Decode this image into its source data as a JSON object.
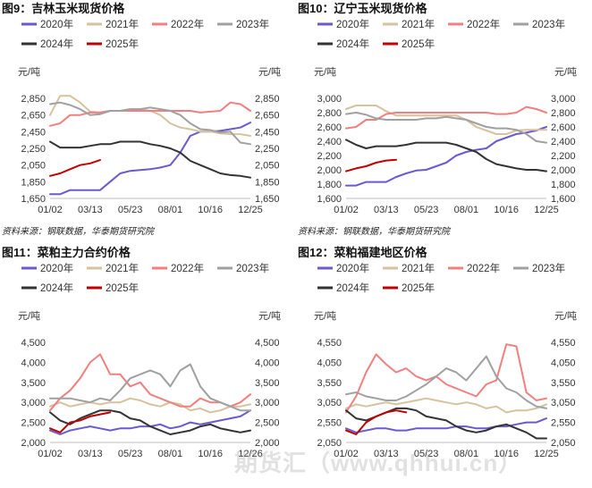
{
  "watermark": "期货汇（www.qhhui.cn）",
  "chart_data": [
    {
      "type": "line",
      "title": "图9：吉林玉米现货价格",
      "unit_left": "元/吨",
      "unit_right": "元/吨",
      "x_ticks": [
        "01/02",
        "03/13",
        "05/23",
        "08/01",
        "10/16",
        "12/25"
      ],
      "ylim": [
        1650,
        2850
      ],
      "y_ticks": [
        1650,
        1850,
        2050,
        2250,
        2450,
        2650,
        2850
      ],
      "y_tick_labels": [
        "1,650",
        "1,850",
        "2,050",
        "2,250",
        "2,450",
        "2,650",
        "2,850"
      ],
      "source": "资料来源：钢联数据，华泰期货研究院",
      "series": [
        {
          "name": "2020年",
          "color": "#6a5acd",
          "values": [
            1700,
            1700,
            1750,
            1750,
            1750,
            1750,
            1850,
            1950,
            1980,
            1990,
            2000,
            2020,
            2050,
            2200,
            2400,
            2450,
            2450,
            2460,
            2480,
            2500,
            2560
          ]
        },
        {
          "name": "2021年",
          "color": "#d6c29e",
          "values": [
            2650,
            2880,
            2880,
            2800,
            2690,
            2680,
            2700,
            2700,
            2720,
            2720,
            2700,
            2650,
            2550,
            2500,
            2480,
            2450,
            2450,
            2430,
            2420,
            2420,
            2400
          ]
        },
        {
          "name": "2022年",
          "color": "#f08080",
          "values": [
            2520,
            2550,
            2650,
            2650,
            2680,
            2680,
            2700,
            2700,
            2700,
            2700,
            2700,
            2700,
            2700,
            2700,
            2700,
            2680,
            2690,
            2700,
            2800,
            2780,
            2700
          ]
        },
        {
          "name": "2023年",
          "color": "#a0a0a0",
          "values": [
            2780,
            2800,
            2770,
            2720,
            2650,
            2660,
            2700,
            2700,
            2720,
            2720,
            2740,
            2720,
            2700,
            2650,
            2550,
            2480,
            2470,
            2440,
            2450,
            2320,
            2300
          ]
        },
        {
          "name": "2024年",
          "color": "#333333",
          "values": [
            2330,
            2260,
            2260,
            2260,
            2280,
            2300,
            2300,
            2330,
            2330,
            2330,
            2300,
            2280,
            2250,
            2200,
            2100,
            2050,
            2000,
            1950,
            1930,
            1920,
            1900
          ]
        },
        {
          "name": "2025年",
          "color": "#c00000",
          "values": [
            1920,
            1950,
            2000,
            2050,
            2070,
            2110
          ]
        }
      ]
    },
    {
      "type": "line",
      "title": "图10：辽宁玉米现货价格",
      "unit_left": "元/吨",
      "unit_right": "元/吨",
      "x_ticks": [
        "01/02",
        "03/13",
        "05/23",
        "08/01",
        "10/16",
        "12/25"
      ],
      "ylim": [
        1600,
        3000
      ],
      "y_ticks": [
        1600,
        1800,
        2000,
        2200,
        2400,
        2600,
        2800,
        3000
      ],
      "y_tick_labels": [
        "1,600",
        "1,800",
        "2,000",
        "2,200",
        "2,400",
        "2,600",
        "2,800",
        "3,000"
      ],
      "source": "资料来源：钢联数据，华泰期货研究院",
      "series": [
        {
          "name": "2020年",
          "color": "#6a5acd",
          "values": [
            1780,
            1780,
            1830,
            1830,
            1830,
            1900,
            1950,
            1990,
            2000,
            2050,
            2100,
            2200,
            2250,
            2280,
            2300,
            2400,
            2450,
            2500,
            2520,
            2550,
            2600
          ]
        },
        {
          "name": "2021年",
          "color": "#d6c29e",
          "values": [
            2850,
            2900,
            2900,
            2900,
            2820,
            2760,
            2760,
            2760,
            2760,
            2760,
            2760,
            2760,
            2700,
            2600,
            2550,
            2500,
            2500,
            2550,
            2560,
            2560,
            2560
          ]
        },
        {
          "name": "2022年",
          "color": "#f08080",
          "values": [
            2580,
            2600,
            2700,
            2700,
            2780,
            2800,
            2800,
            2800,
            2800,
            2800,
            2800,
            2800,
            2800,
            2800,
            2800,
            2780,
            2780,
            2800,
            2880,
            2850,
            2800
          ]
        },
        {
          "name": "2023年",
          "color": "#a0a0a0",
          "values": [
            2780,
            2800,
            2770,
            2720,
            2700,
            2700,
            2700,
            2700,
            2720,
            2720,
            2740,
            2720,
            2700,
            2650,
            2600,
            2580,
            2580,
            2560,
            2500,
            2400,
            2380
          ]
        },
        {
          "name": "2024年",
          "color": "#333333",
          "values": [
            2420,
            2350,
            2300,
            2330,
            2330,
            2330,
            2350,
            2380,
            2380,
            2380,
            2380,
            2350,
            2300,
            2250,
            2150,
            2080,
            2050,
            2020,
            2000,
            2000,
            1980
          ]
        },
        {
          "name": "2025年",
          "color": "#c00000",
          "values": [
            1980,
            2020,
            2050,
            2100,
            2130,
            2140
          ]
        }
      ]
    },
    {
      "type": "line",
      "title": "图11：菜粕主力合约价格",
      "unit_left": "元/吨",
      "unit_right": "元/吨",
      "x_ticks": [
        "01/02",
        "03/13",
        "05/23",
        "08/01",
        "10/16",
        "12/26"
      ],
      "ylim": [
        2000,
        4500
      ],
      "y_ticks": [
        2000,
        2500,
        3000,
        3500,
        4000,
        4500
      ],
      "y_tick_labels": [
        "2,000",
        "2,500",
        "3,000",
        "3,500",
        "4,000",
        "4,500"
      ],
      "source": "",
      "series": [
        {
          "name": "2020年",
          "color": "#6a5acd",
          "values": [
            2300,
            2200,
            2300,
            2350,
            2400,
            2350,
            2300,
            2350,
            2350,
            2400,
            2400,
            2450,
            2350,
            2400,
            2500,
            2450,
            2500,
            2550,
            2600,
            2650,
            2800
          ]
        },
        {
          "name": "2021年",
          "color": "#d6c29e",
          "values": [
            2900,
            3000,
            2900,
            2950,
            3000,
            2950,
            3000,
            3000,
            3100,
            3050,
            2950,
            2900,
            3000,
            2950,
            2800,
            2850,
            2750,
            2800,
            2900,
            2900,
            2950
          ]
        },
        {
          "name": "2022年",
          "color": "#f08080",
          "values": [
            2800,
            3100,
            3300,
            3600,
            4000,
            4200,
            3700,
            3700,
            3400,
            3500,
            3200,
            3100,
            3000,
            2900,
            2900,
            3100,
            3000,
            3000,
            2900,
            3000,
            3200
          ]
        },
        {
          "name": "2023年",
          "color": "#a0a0a0",
          "values": [
            3100,
            3100,
            3100,
            3050,
            3000,
            3100,
            3050,
            3300,
            3600,
            3700,
            3800,
            3700,
            3400,
            3800,
            3950,
            3400,
            3100,
            3000,
            2900,
            2800,
            2800
          ]
        },
        {
          "name": "2024年",
          "color": "#333333",
          "values": [
            2750,
            2550,
            2450,
            2600,
            2700,
            2800,
            2800,
            2750,
            2600,
            2550,
            2400,
            2300,
            2200,
            2250,
            2300,
            2400,
            2450,
            2350,
            2300,
            2250,
            2300
          ]
        },
        {
          "name": "2025年",
          "color": "#c00000",
          "values": [
            2350,
            2250,
            2500,
            2550,
            2650,
            2700,
            2750
          ]
        }
      ]
    },
    {
      "type": "line",
      "title": "图12：菜粕福建地区价格",
      "unit_left": "元/吨",
      "unit_right": "元/吨",
      "x_ticks": [
        "01/02",
        "03/13",
        "05/23",
        "08/01",
        "10/16",
        "12/25"
      ],
      "ylim": [
        2050,
        4550
      ],
      "y_ticks": [
        2050,
        2550,
        3050,
        3550,
        4050,
        4550
      ],
      "y_tick_labels": [
        "2,050",
        "2,550",
        "3,050",
        "3,550",
        "4,050",
        "4,550"
      ],
      "source": "",
      "series": [
        {
          "name": "2020年",
          "color": "#6a5acd",
          "values": [
            2400,
            2300,
            2350,
            2400,
            2400,
            2350,
            2350,
            2400,
            2400,
            2400,
            2400,
            2450,
            2450,
            2400,
            2400,
            2450,
            2450,
            2500,
            2550,
            2550,
            2650
          ]
        },
        {
          "name": "2021年",
          "color": "#d6c29e",
          "values": [
            2900,
            3000,
            2950,
            3000,
            3050,
            3000,
            3050,
            3100,
            3150,
            3100,
            3050,
            3000,
            3050,
            3000,
            2900,
            2950,
            2800,
            2850,
            2850,
            2900,
            3000
          ]
        },
        {
          "name": "2022年",
          "color": "#f08080",
          "values": [
            2800,
            3200,
            3800,
            4250,
            4000,
            3800,
            3900,
            3700,
            3600,
            3700,
            3500,
            3400,
            3300,
            3200,
            3500,
            3600,
            4500,
            4450,
            3300,
            3100,
            3150
          ]
        },
        {
          "name": "2023年",
          "color": "#a0a0a0",
          "values": [
            3250,
            3300,
            3200,
            3150,
            3100,
            3100,
            3200,
            3350,
            3500,
            3700,
            3900,
            3800,
            3600,
            3900,
            4200,
            3700,
            3400,
            3300,
            3100,
            2950,
            2900
          ]
        },
        {
          "name": "2024年",
          "color": "#333333",
          "values": [
            2850,
            2650,
            2600,
            2700,
            2800,
            2900,
            2900,
            2850,
            2700,
            2650,
            2600,
            2450,
            2350,
            2300,
            2350,
            2450,
            2500,
            2400,
            2300,
            2150,
            2150
          ]
        },
        {
          "name": "2025年",
          "color": "#c00000",
          "values": [
            2350,
            2250,
            2550,
            2700,
            2800,
            2850,
            2800
          ]
        }
      ]
    }
  ]
}
